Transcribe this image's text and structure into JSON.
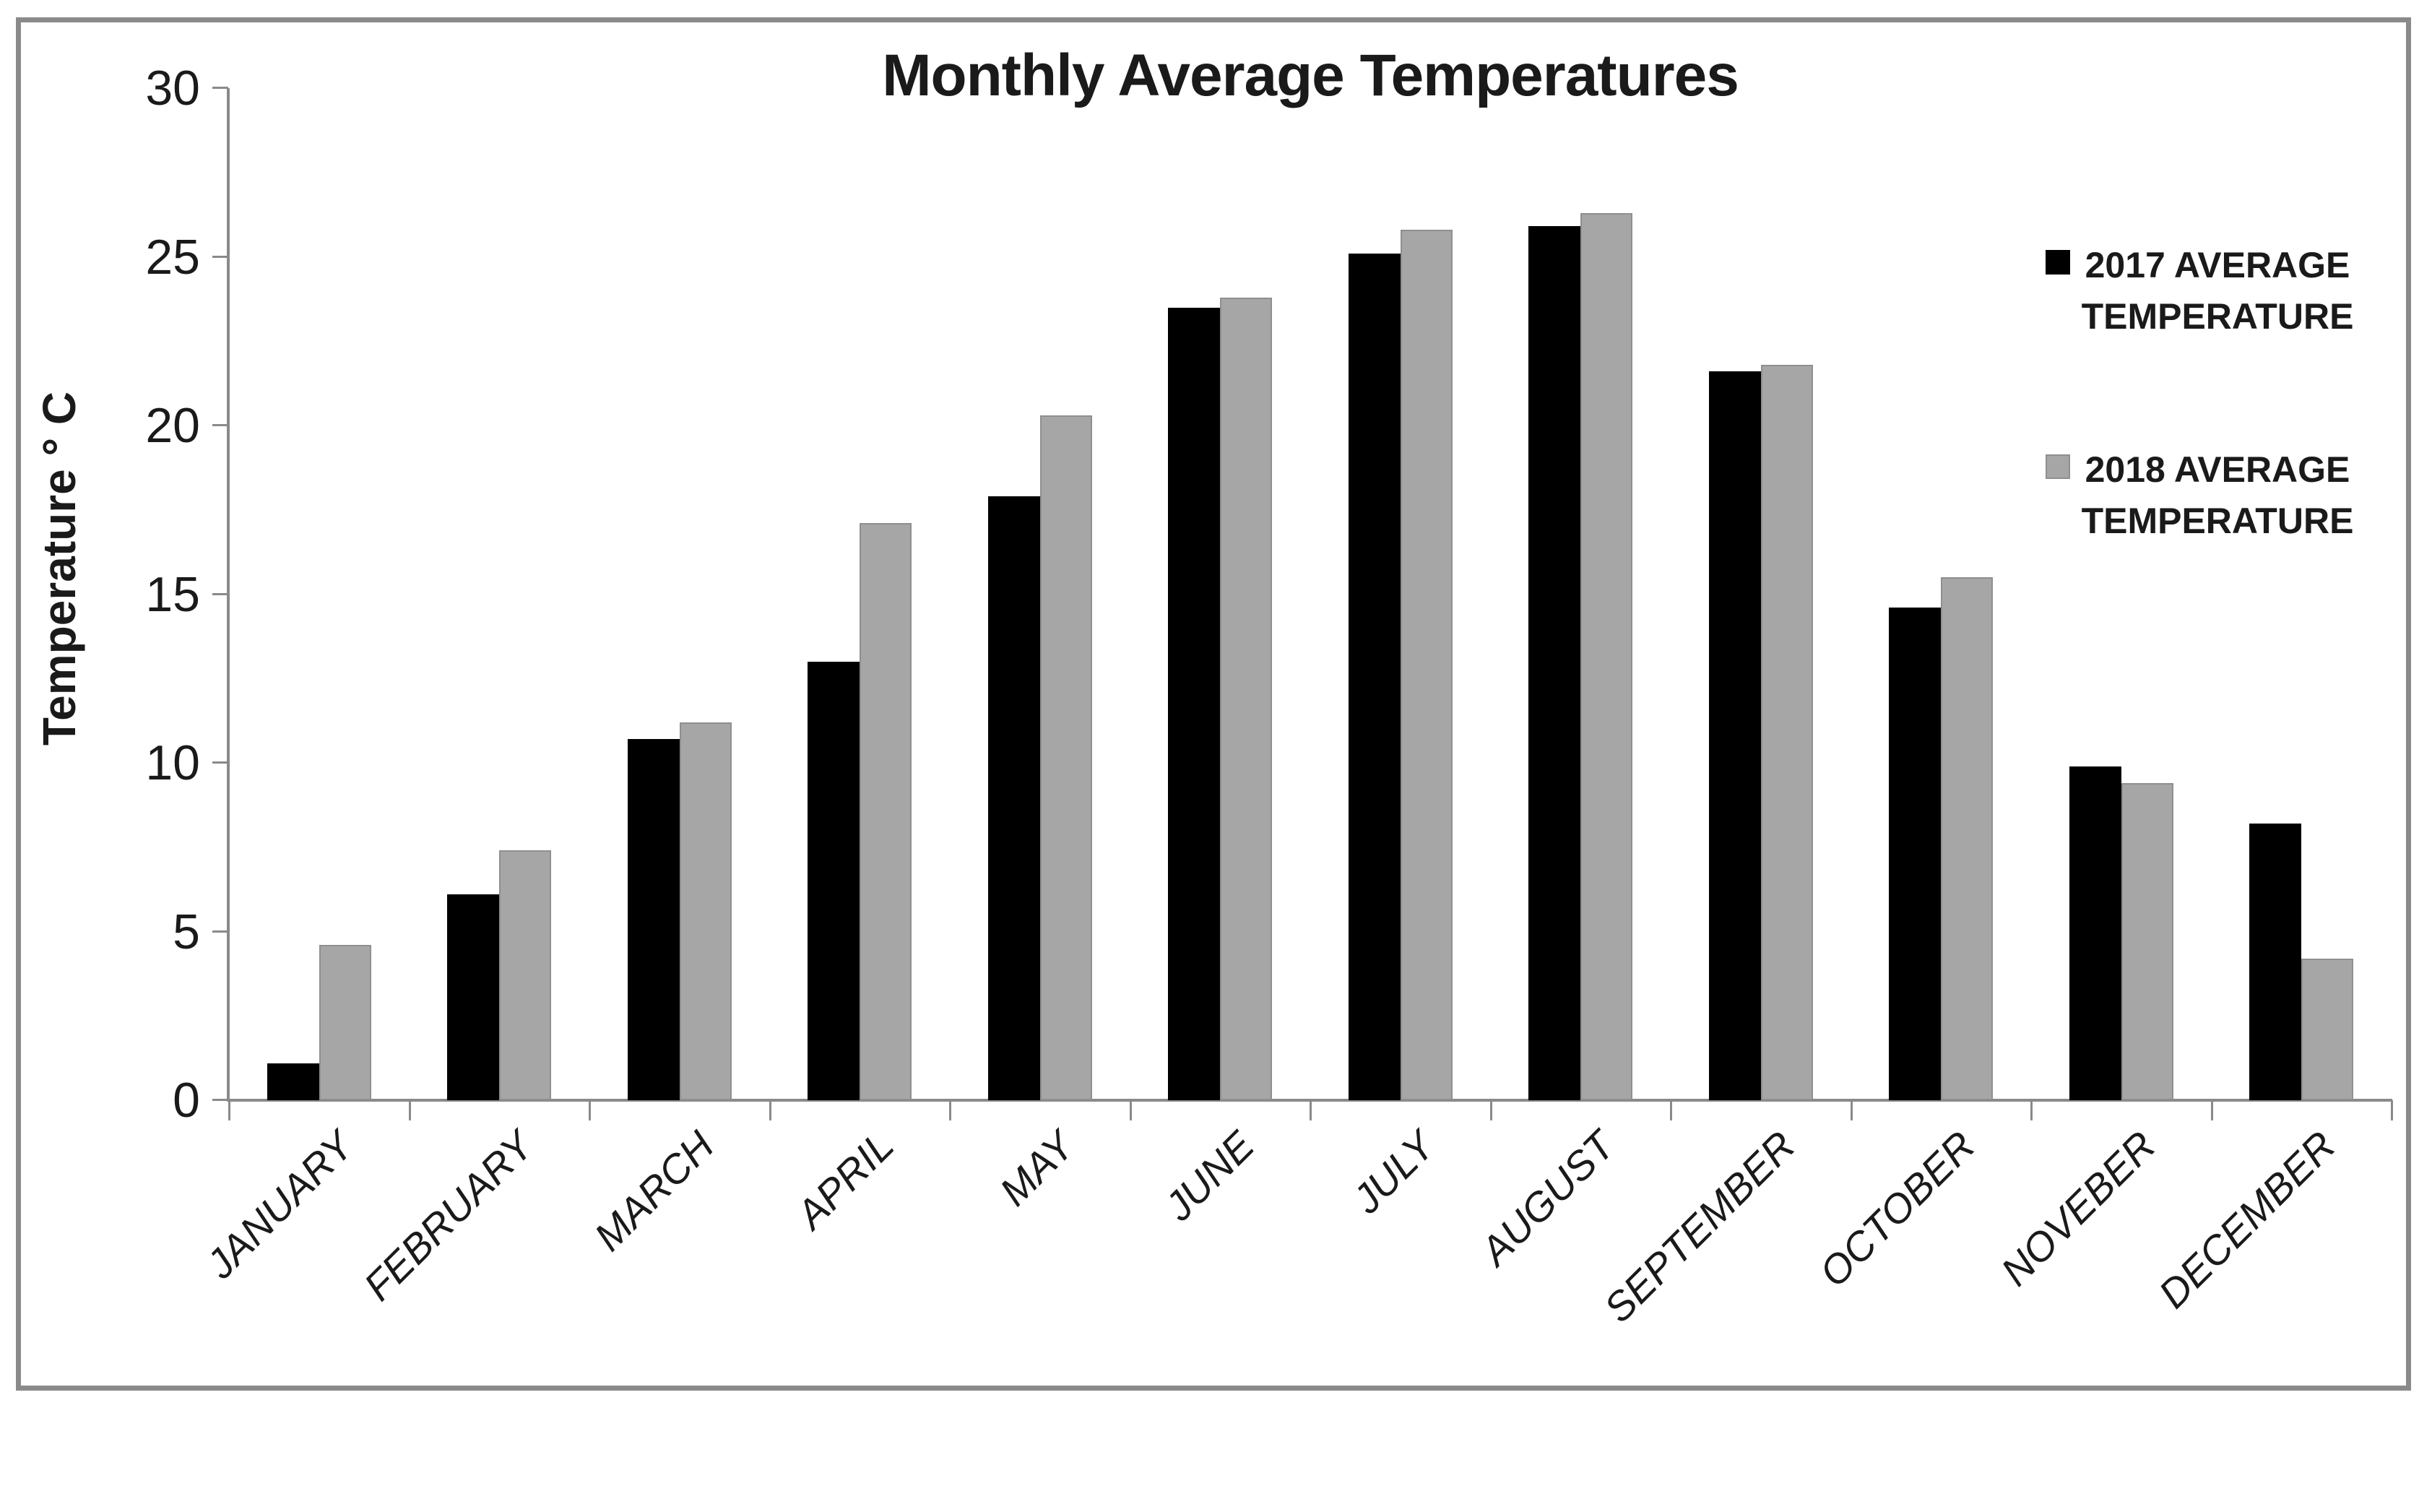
{
  "chart_data": {
    "type": "bar",
    "title": "Monthly Average Temperatures",
    "ylabel": "Temperature ° C",
    "xlabel": "",
    "categories": [
      "JANUARY",
      "FEBRUARY",
      "MARCH",
      "APRIL",
      "MAY",
      "JUNE",
      "JULY",
      "AUGUST",
      "SEPTEMBER",
      "OCTOBER",
      "NOVEBER",
      "DECEMBER"
    ],
    "series": [
      {
        "name": "2017 AVERAGE TEMPERATURE",
        "color": "#000000",
        "border_color": "#000000",
        "values": [
          1.1,
          6.1,
          10.7,
          13.0,
          17.9,
          23.5,
          25.1,
          25.9,
          21.6,
          14.6,
          9.9,
          8.2
        ]
      },
      {
        "name": "2018 AVERAGE TEMPERATURE",
        "color": "#a6a6a6",
        "border_color": "#8f8f8f",
        "values": [
          4.6,
          7.4,
          11.2,
          17.1,
          20.3,
          23.8,
          25.8,
          26.3,
          21.8,
          15.5,
          9.4,
          4.2
        ]
      }
    ],
    "ylim": [
      0,
      30
    ],
    "yticks": [
      0,
      5,
      10,
      15,
      20,
      25,
      30
    ],
    "grid": false,
    "legend_position": "right",
    "axis_color": "#8a8a8a",
    "text_color": "#1a1a1a",
    "background_color": "#ffffff",
    "frame_border_color": "#8a8a8a"
  }
}
